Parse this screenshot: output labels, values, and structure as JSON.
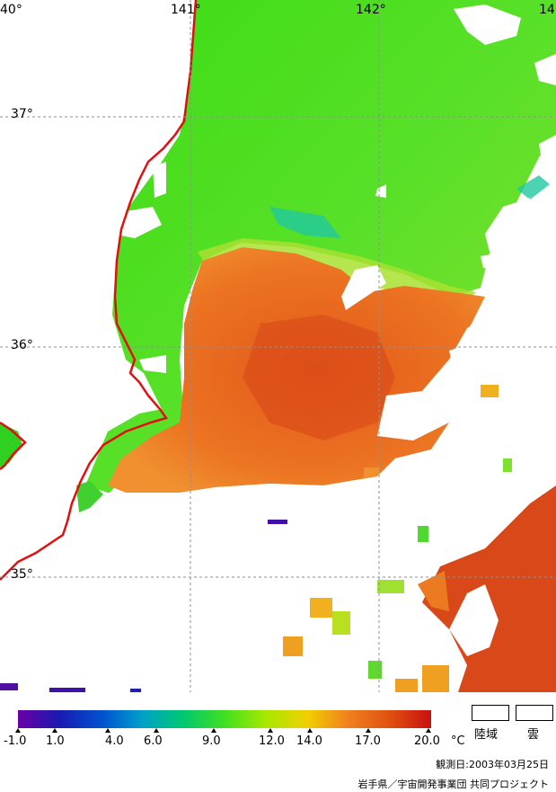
{
  "map": {
    "lon_labels": [
      "40°",
      "141°",
      "142°",
      "14"
    ],
    "lat_labels": [
      "37°",
      "36°",
      "35°"
    ]
  },
  "legend": {
    "ticks": [
      "-1.0",
      "1.0",
      "4.0",
      "6.0",
      "9.0",
      "12.0",
      "14.0",
      "17.0",
      "20.0"
    ],
    "unit": "°C",
    "gradient_colors": [
      "#6a00a8",
      "#1a1ab0",
      "#0050d0",
      "#00a0c8",
      "#00c870",
      "#40e020",
      "#a8e800",
      "#f0d000",
      "#f08020",
      "#e05010",
      "#c81010"
    ],
    "land_label": "陸域",
    "cloud_label": "雲"
  },
  "footer": {
    "date": "観測日:2003年03月25日",
    "credit": "岩手県／宇宙開発事業団 共同プロジェクト"
  }
}
